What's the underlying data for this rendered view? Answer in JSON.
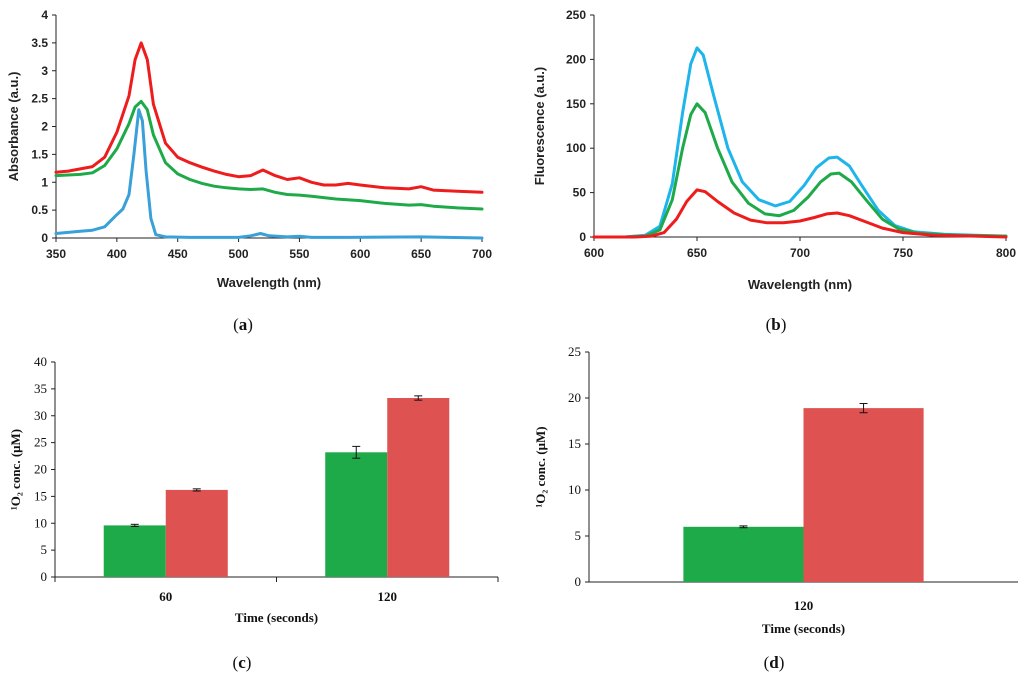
{
  "chart_data": [
    {
      "type": "line",
      "caption_letter": "a",
      "xlabel": "Wavelength (nm)",
      "ylabel": "Absorbance (a.u.)",
      "xlim": [
        350,
        700
      ],
      "ylim": [
        0,
        4
      ],
      "xticks": [
        "350",
        "400",
        "450",
        "500",
        "550",
        "600",
        "650",
        "700"
      ],
      "yticks": [
        "0",
        "0.5",
        "1",
        "1.5",
        "2",
        "2.5",
        "3",
        "3.5",
        "4"
      ],
      "series": [
        {
          "name": "red",
          "color": "#ee1c1c",
          "points": [
            [
              350,
              1.18
            ],
            [
              360,
              1.2
            ],
            [
              370,
              1.24
            ],
            [
              380,
              1.28
            ],
            [
              390,
              1.45
            ],
            [
              400,
              1.9
            ],
            [
              410,
              2.55
            ],
            [
              415,
              3.2
            ],
            [
              420,
              3.5
            ],
            [
              425,
              3.2
            ],
            [
              430,
              2.4
            ],
            [
              440,
              1.7
            ],
            [
              450,
              1.45
            ],
            [
              460,
              1.35
            ],
            [
              470,
              1.27
            ],
            [
              480,
              1.2
            ],
            [
              490,
              1.14
            ],
            [
              500,
              1.1
            ],
            [
              510,
              1.12
            ],
            [
              520,
              1.22
            ],
            [
              530,
              1.12
            ],
            [
              540,
              1.05
            ],
            [
              550,
              1.08
            ],
            [
              560,
              1.0
            ],
            [
              570,
              0.95
            ],
            [
              580,
              0.95
            ],
            [
              590,
              0.98
            ],
            [
              600,
              0.95
            ],
            [
              620,
              0.9
            ],
            [
              640,
              0.88
            ],
            [
              650,
              0.92
            ],
            [
              660,
              0.86
            ],
            [
              680,
              0.84
            ],
            [
              700,
              0.82
            ]
          ]
        },
        {
          "name": "green",
          "color": "#1faa4a",
          "points": [
            [
              350,
              1.12
            ],
            [
              360,
              1.13
            ],
            [
              370,
              1.14
            ],
            [
              380,
              1.17
            ],
            [
              390,
              1.3
            ],
            [
              400,
              1.6
            ],
            [
              410,
              2.05
            ],
            [
              415,
              2.35
            ],
            [
              420,
              2.45
            ],
            [
              425,
              2.3
            ],
            [
              430,
              1.85
            ],
            [
              440,
              1.35
            ],
            [
              450,
              1.15
            ],
            [
              460,
              1.05
            ],
            [
              470,
              0.98
            ],
            [
              480,
              0.93
            ],
            [
              490,
              0.9
            ],
            [
              500,
              0.88
            ],
            [
              510,
              0.87
            ],
            [
              520,
              0.88
            ],
            [
              530,
              0.82
            ],
            [
              540,
              0.78
            ],
            [
              550,
              0.77
            ],
            [
              560,
              0.75
            ],
            [
              580,
              0.7
            ],
            [
              600,
              0.67
            ],
            [
              620,
              0.62
            ],
            [
              640,
              0.59
            ],
            [
              650,
              0.6
            ],
            [
              660,
              0.57
            ],
            [
              680,
              0.54
            ],
            [
              700,
              0.52
            ]
          ]
        },
        {
          "name": "blue",
          "color": "#3aa0d8",
          "points": [
            [
              350,
              0.08
            ],
            [
              360,
              0.1
            ],
            [
              370,
              0.12
            ],
            [
              380,
              0.14
            ],
            [
              390,
              0.2
            ],
            [
              400,
              0.42
            ],
            [
              405,
              0.52
            ],
            [
              410,
              0.78
            ],
            [
              414,
              1.5
            ],
            [
              418,
              2.3
            ],
            [
              421,
              2.1
            ],
            [
              424,
              1.2
            ],
            [
              428,
              0.35
            ],
            [
              432,
              0.06
            ],
            [
              440,
              0.02
            ],
            [
              460,
              0.01
            ],
            [
              500,
              0.01
            ],
            [
              510,
              0.04
            ],
            [
              518,
              0.08
            ],
            [
              525,
              0.04
            ],
            [
              540,
              0.02
            ],
            [
              550,
              0.03
            ],
            [
              560,
              0.01
            ],
            [
              590,
              0.01
            ],
            [
              650,
              0.02
            ],
            [
              700,
              0.0
            ]
          ]
        }
      ]
    },
    {
      "type": "line",
      "caption_letter": "b",
      "xlabel": "Wavelength (nm)",
      "ylabel": "Fluorescence (a.u.)",
      "xlim": [
        600,
        800
      ],
      "ylim": [
        0,
        250
      ],
      "xticks": [
        "600",
        "650",
        "700",
        "750",
        "800"
      ],
      "yticks": [
        "0",
        "50",
        "100",
        "150",
        "200",
        "250"
      ],
      "series": [
        {
          "name": "cyan",
          "color": "#1eb4ec",
          "points": [
            [
              600,
              0
            ],
            [
              615,
              0
            ],
            [
              625,
              2
            ],
            [
              632,
              12
            ],
            [
              638,
              60
            ],
            [
              643,
              140
            ],
            [
              647,
              195
            ],
            [
              650,
              213
            ],
            [
              653,
              205
            ],
            [
              658,
              160
            ],
            [
              665,
              100
            ],
            [
              672,
              62
            ],
            [
              680,
              42
            ],
            [
              688,
              35
            ],
            [
              695,
              40
            ],
            [
              702,
              58
            ],
            [
              708,
              78
            ],
            [
              714,
              89
            ],
            [
              718,
              90
            ],
            [
              724,
              80
            ],
            [
              730,
              58
            ],
            [
              738,
              30
            ],
            [
              746,
              13
            ],
            [
              755,
              6
            ],
            [
              770,
              3
            ],
            [
              785,
              2
            ],
            [
              800,
              1
            ]
          ]
        },
        {
          "name": "green",
          "color": "#1faa4a",
          "points": [
            [
              600,
              0
            ],
            [
              615,
              0
            ],
            [
              625,
              1
            ],
            [
              632,
              8
            ],
            [
              638,
              42
            ],
            [
              643,
              100
            ],
            [
              647,
              138
            ],
            [
              650,
              150
            ],
            [
              654,
              140
            ],
            [
              660,
              100
            ],
            [
              667,
              62
            ],
            [
              675,
              38
            ],
            [
              683,
              26
            ],
            [
              690,
              24
            ],
            [
              697,
              30
            ],
            [
              704,
              45
            ],
            [
              710,
              62
            ],
            [
              715,
              71
            ],
            [
              719,
              72
            ],
            [
              725,
              62
            ],
            [
              732,
              42
            ],
            [
              740,
              20
            ],
            [
              748,
              9
            ],
            [
              758,
              4
            ],
            [
              775,
              2
            ],
            [
              800,
              1
            ]
          ]
        },
        {
          "name": "red",
          "color": "#ee1c1c",
          "points": [
            [
              600,
              0
            ],
            [
              620,
              0
            ],
            [
              628,
              1
            ],
            [
              634,
              5
            ],
            [
              640,
              20
            ],
            [
              645,
              40
            ],
            [
              650,
              53
            ],
            [
              654,
              51
            ],
            [
              660,
              40
            ],
            [
              668,
              27
            ],
            [
              676,
              19
            ],
            [
              684,
              16
            ],
            [
              692,
              16
            ],
            [
              700,
              18
            ],
            [
              707,
              22
            ],
            [
              713,
              26
            ],
            [
              718,
              27
            ],
            [
              724,
              24
            ],
            [
              732,
              17
            ],
            [
              740,
              10
            ],
            [
              750,
              5
            ],
            [
              765,
              2
            ],
            [
              785,
              1
            ],
            [
              800,
              0
            ]
          ]
        }
      ]
    },
    {
      "type": "bar",
      "caption_letter": "c",
      "xlabel": "Time (seconds)",
      "ylabel": "¹O₂ conc. (μM)",
      "categories": [
        "60",
        "120"
      ],
      "ylim": [
        0,
        40
      ],
      "yticks": [
        "0",
        "5",
        "10",
        "15",
        "20",
        "25",
        "30",
        "35",
        "40"
      ],
      "series": [
        {
          "name": "green",
          "color": "#1faa4a",
          "values": [
            9.6,
            23.2
          ],
          "errors": [
            0.2,
            1.1
          ]
        },
        {
          "name": "red",
          "color": "#de5252",
          "values": [
            16.2,
            33.3
          ],
          "errors": [
            0.2,
            0.4
          ]
        }
      ]
    },
    {
      "type": "bar",
      "caption_letter": "d",
      "xlabel": "Time (seconds)",
      "ylabel": "¹O₂ conc. (μM)",
      "categories": [
        "120"
      ],
      "ylim": [
        0,
        25
      ],
      "yticks": [
        "0",
        "5",
        "10",
        "15",
        "20",
        "25"
      ],
      "series": [
        {
          "name": "green",
          "color": "#1faa4a",
          "values": [
            6.0
          ],
          "errors": [
            0.1
          ]
        },
        {
          "name": "red",
          "color": "#de5252",
          "values": [
            18.9
          ],
          "errors": [
            0.5
          ]
        }
      ]
    }
  ]
}
